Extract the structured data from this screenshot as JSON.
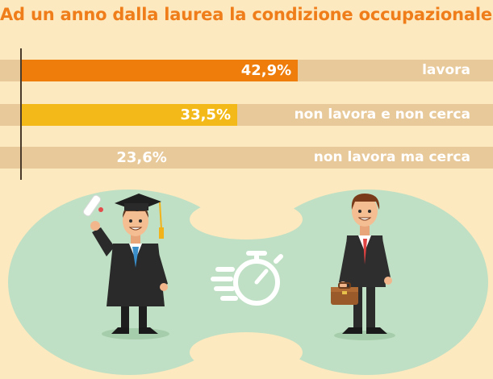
{
  "title": "Ad un anno dalla laurea la condizione occupazionale è:",
  "chart_data": {
    "type": "bar",
    "orientation": "horizontal",
    "categories": [
      "lavora",
      "non lavora e non cerca",
      "non lavora ma cerca"
    ],
    "values": [
      42.9,
      33.5,
      23.6
    ],
    "value_labels": [
      "42,9%",
      "33,5%",
      "23,6%"
    ],
    "colors": [
      "#ef7d0b",
      "#f3b918",
      "#e8c99a"
    ],
    "xlim": [
      0,
      100
    ],
    "unit": "%"
  },
  "illustration": {
    "graduate": "graduate-figure",
    "stopwatch": "stopwatch-icon",
    "employee": "businessman-figure"
  }
}
